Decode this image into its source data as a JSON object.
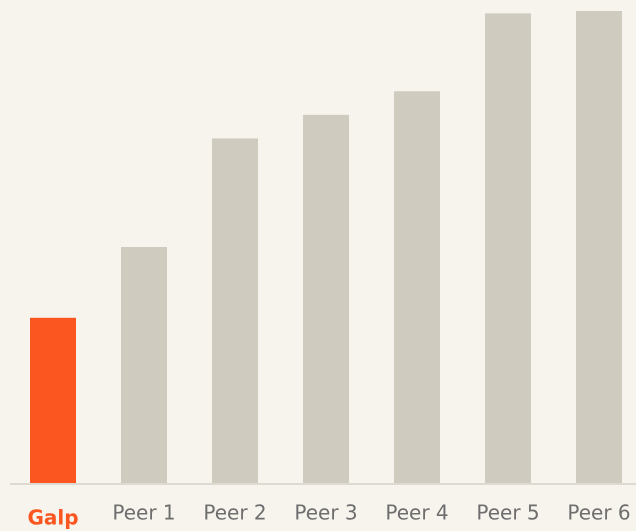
{
  "chart_data": {
    "type": "bar",
    "categories": [
      "Galp",
      "Peer 1",
      "Peer 2",
      "Peer 3",
      "Peer 4",
      "Peer 5",
      "Peer 6"
    ],
    "values": [
      35,
      50,
      73,
      78,
      83,
      99.5,
      100
    ],
    "colors": [
      "#fc5620",
      "#cfcbbf",
      "#cfcbbf",
      "#cfcbbf",
      "#cfcbbf",
      "#cfcbbf",
      "#cfcbbf"
    ],
    "label_colors": [
      "#fc5620",
      "#6e6e6e",
      "#6e6e6e",
      "#6e6e6e",
      "#6e6e6e",
      "#6e6e6e",
      "#6e6e6e"
    ],
    "ylim": [
      0,
      100
    ]
  }
}
